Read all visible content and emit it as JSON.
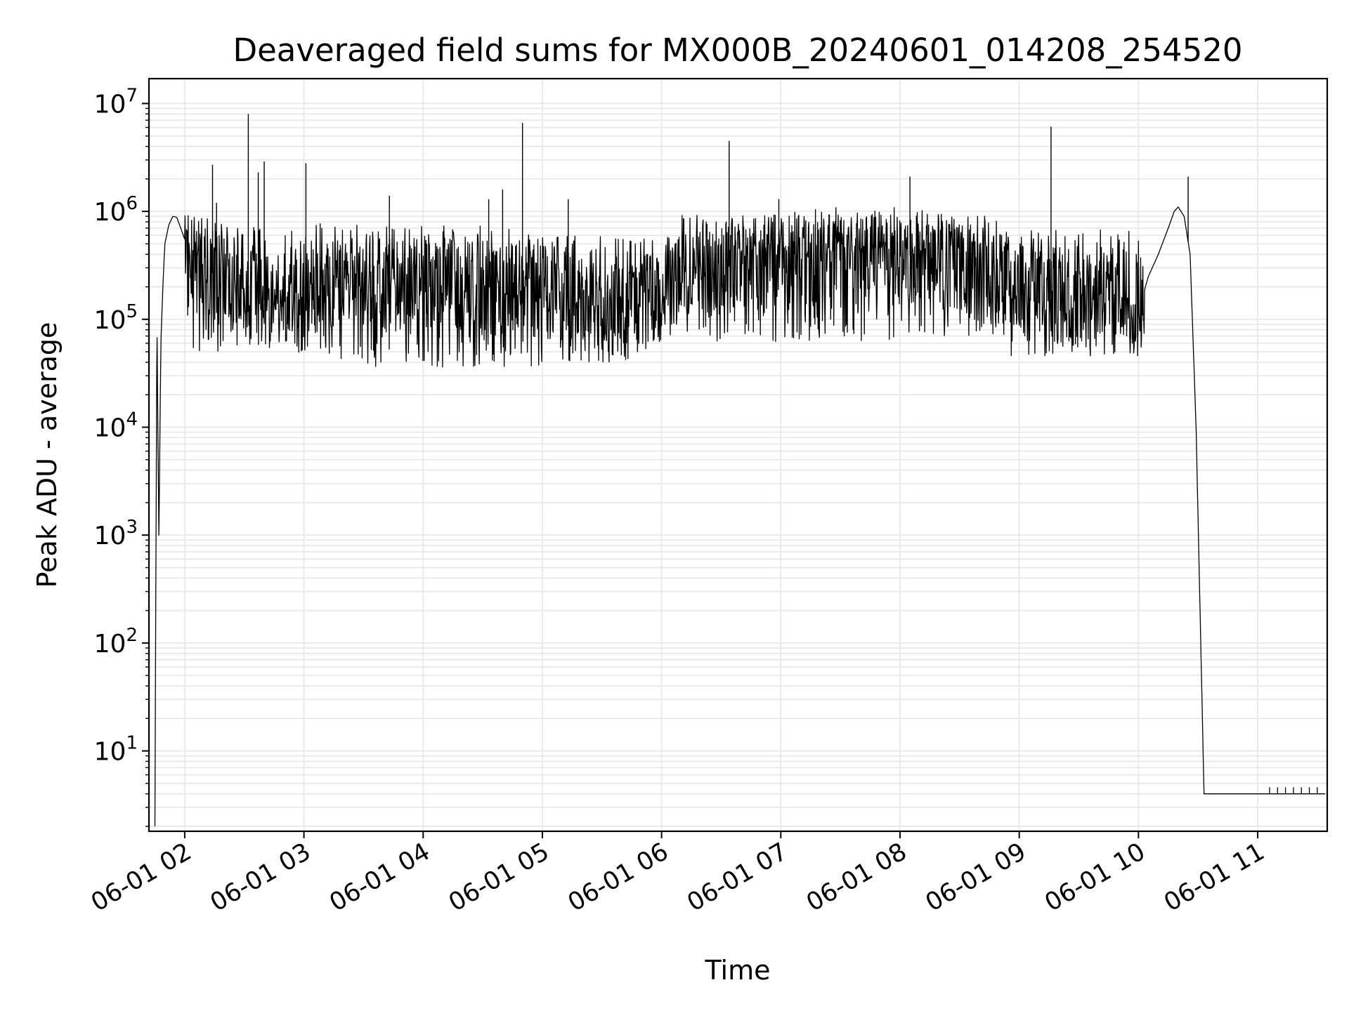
{
  "chart_data": {
    "type": "line",
    "title": "Deaveraged field sums for MX000B_20240601_014208_254520",
    "xlabel": "Time",
    "ylabel": "Peak ADU - average",
    "yscale": "log",
    "ylim": [
      1.8,
      17000000
    ],
    "xlim": [
      "06-01 01:42",
      "06-01 11:35"
    ],
    "grid": true,
    "line_color": "#000000",
    "grid_color": "#e6e6e6",
    "x_ticks": [
      "06-01 02",
      "06-01 03",
      "06-01 04",
      "06-01 05",
      "06-01 06",
      "06-01 07",
      "06-01 08",
      "06-01 09",
      "06-01 10",
      "06-01 11"
    ],
    "y_ticks": [
      {
        "value": 10,
        "base": "10",
        "exp": "1"
      },
      {
        "value": 100,
        "base": "10",
        "exp": "2"
      },
      {
        "value": 1000,
        "base": "10",
        "exp": "3"
      },
      {
        "value": 10000,
        "base": "10",
        "exp": "4"
      },
      {
        "value": 100000,
        "base": "10",
        "exp": "5"
      },
      {
        "value": 1000000,
        "base": "10",
        "exp": "6"
      },
      {
        "value": 10000000,
        "base": "10",
        "exp": "7"
      }
    ],
    "series": [
      {
        "x": [
          "06-01 01:45",
          "06-01 01:46",
          "06-01 01:47",
          "06-01 01:48",
          "06-01 01:49",
          "06-01 01:50",
          "06-01 01:52",
          "06-01 01:54",
          "06-01 01:56",
          "06-01 01:58",
          "06-01 02:00",
          "06-01 02:05",
          "06-01 02:10",
          "06-01 02:20",
          "06-01 02:30",
          "06-01 02:40",
          "06-01 02:50",
          "06-01 03:00",
          "06-01 03:10",
          "06-01 03:20",
          "06-01 03:30",
          "06-01 03:40",
          "06-01 03:50",
          "06-01 04:00",
          "06-01 04:10",
          "06-01 04:20",
          "06-01 04:30",
          "06-01 04:40",
          "06-01 04:50",
          "06-01 05:00",
          "06-01 05:10",
          "06-01 05:20",
          "06-01 05:30",
          "06-01 05:40",
          "06-01 05:50",
          "06-01 06:00",
          "06-01 06:10",
          "06-01 06:20",
          "06-01 06:30",
          "06-01 06:40",
          "06-01 06:50",
          "06-01 07:00",
          "06-01 07:10",
          "06-01 07:20",
          "06-01 07:30",
          "06-01 07:40",
          "06-01 07:50",
          "06-01 08:00",
          "06-01 08:10",
          "06-01 08:20",
          "06-01 08:30",
          "06-01 08:40",
          "06-01 08:50",
          "06-01 09:00",
          "06-01 09:10",
          "06-01 09:20",
          "06-01 09:30",
          "06-01 09:40",
          "06-01 09:50",
          "06-01 10:00",
          "06-01 10:05",
          "06-01 10:10",
          "06-01 10:15",
          "06-01 10:18",
          "06-01 10:20",
          "06-01 10:23",
          "06-01 10:26",
          "06-01 10:29",
          "06-01 10:31",
          "06-01 10:33",
          "06-01 11:34"
        ],
        "y": [
          2,
          110000,
          900,
          60000,
          200000,
          500000,
          750000,
          900000,
          880000,
          700000,
          550000,
          400000,
          350000,
          200000,
          180000,
          150000,
          150000,
          130000,
          200000,
          250000,
          220000,
          250000,
          260000,
          280000,
          250000,
          220000,
          200000,
          190000,
          180000,
          160000,
          120000,
          100000,
          90000,
          110000,
          140000,
          170000,
          220000,
          280000,
          300000,
          320000,
          340000,
          360000,
          380000,
          400000,
          420000,
          430000,
          420000,
          400000,
          380000,
          340000,
          300000,
          260000,
          220000,
          200000,
          180000,
          160000,
          140000,
          130000,
          120000,
          120000,
          250000,
          400000,
          700000,
          1000000,
          1100000,
          900000,
          400000,
          10000,
          200,
          4,
          4
        ],
        "noise_profile": [
          {
            "from": "06-01 02:00",
            "to": "06-01 03:10",
            "low": 50000,
            "high": 800000
          },
          {
            "from": "06-01 03:10",
            "to": "06-01 05:00",
            "low": 35000,
            "high": 750000
          },
          {
            "from": "06-01 05:00",
            "to": "06-01 06:10",
            "low": 50000,
            "high": 600000
          },
          {
            "from": "06-01 06:10",
            "to": "06-01 08:50",
            "low": 60000,
            "high": 950000
          },
          {
            "from": "06-01 08:50",
            "to": "06-01 10:05",
            "low": 45000,
            "high": 700000
          }
        ],
        "spikes": [
          {
            "x": "06-01 02:14",
            "y": 2700000
          },
          {
            "x": "06-01 02:16",
            "y": 1200000
          },
          {
            "x": "06-01 02:32",
            "y": 8000000
          },
          {
            "x": "06-01 02:37",
            "y": 2300000
          },
          {
            "x": "06-01 02:40",
            "y": 2900000
          },
          {
            "x": "06-01 03:01",
            "y": 2800000
          },
          {
            "x": "06-01 03:43",
            "y": 1400000
          },
          {
            "x": "06-01 04:33",
            "y": 1300000
          },
          {
            "x": "06-01 04:40",
            "y": 1600000
          },
          {
            "x": "06-01 04:50",
            "y": 6600000
          },
          {
            "x": "06-01 05:13",
            "y": 1300000
          },
          {
            "x": "06-01 06:34",
            "y": 4500000
          },
          {
            "x": "06-01 06:59",
            "y": 1300000
          },
          {
            "x": "06-01 08:05",
            "y": 2100000
          },
          {
            "x": "06-01 09:16",
            "y": 6100000
          },
          {
            "x": "06-01 10:25",
            "y": 2100000
          }
        ]
      }
    ]
  }
}
